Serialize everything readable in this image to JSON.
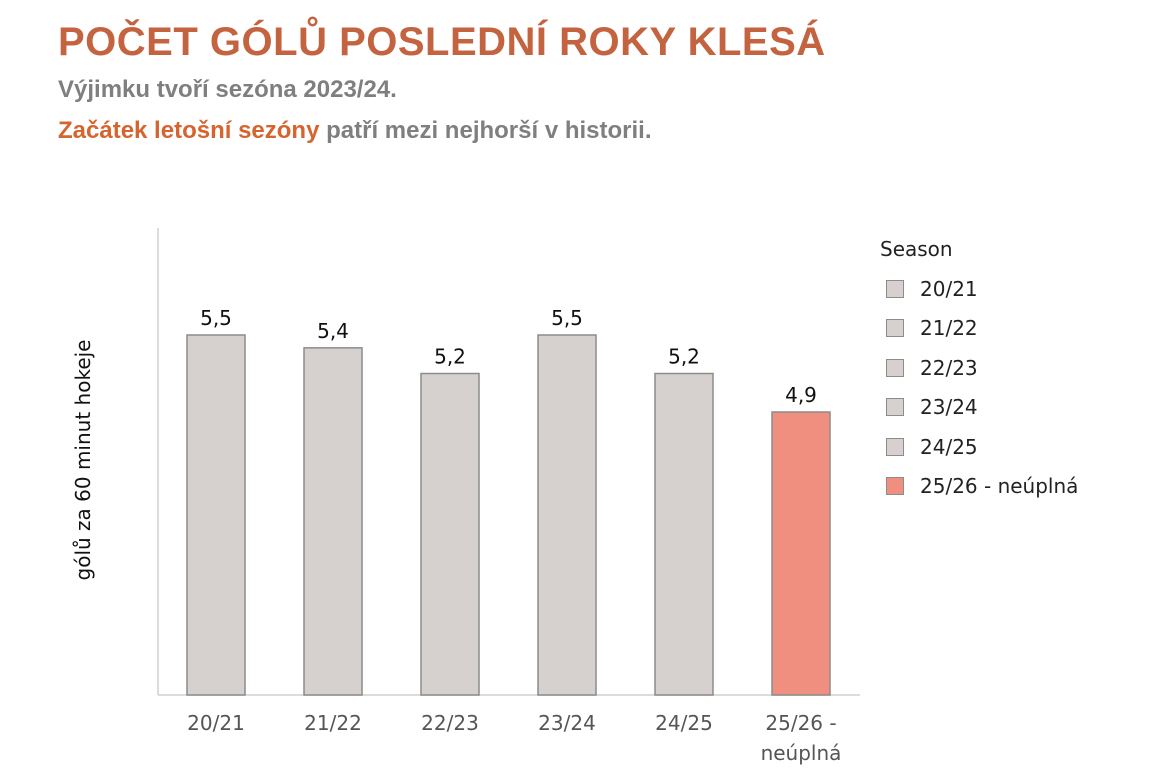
{
  "header": {
    "title": "POČET GÓLŮ POSLEDNÍ ROKY KLESÁ",
    "subtitle_line1": "Výjimku tvoří sezóna 2023/24.",
    "subtitle_line2_highlight": "Začátek letošní sezóny",
    "subtitle_line2_rest": " patří mezi nejhorší v historii."
  },
  "colors": {
    "title": "#C4633F",
    "highlight": "#D5642E",
    "bar_default": "#D6D1CE",
    "bar_highlight": "#F08E7F",
    "bar_stroke": "#8c8c8c"
  },
  "chart_data": {
    "type": "bar",
    "ylabel": "gólů za 60 minut hokeje",
    "xlabel": "",
    "categories": [
      "20/21",
      "21/22",
      "22/23",
      "23/24",
      "24/25",
      "25/26 - neúplná"
    ],
    "category_tick_lines": [
      [
        "20/21"
      ],
      [
        "21/22"
      ],
      [
        "22/23"
      ],
      [
        "23/24"
      ],
      [
        "24/25"
      ],
      [
        "25/26 -",
        "neúplná"
      ]
    ],
    "values": [
      5.5,
      5.4,
      5.2,
      5.5,
      5.2,
      4.9
    ],
    "value_labels": [
      "5,5",
      "5,4",
      "5,2",
      "5,5",
      "5,2",
      "4,9"
    ],
    "highlight_index": 5,
    "ylim": [
      3.0,
      6.0
    ],
    "grid": false,
    "legend": {
      "title": "Season",
      "placement": "right",
      "entries": [
        "20/21",
        "21/22",
        "22/23",
        "23/24",
        "24/25",
        "25/26 - neúplná"
      ]
    }
  }
}
